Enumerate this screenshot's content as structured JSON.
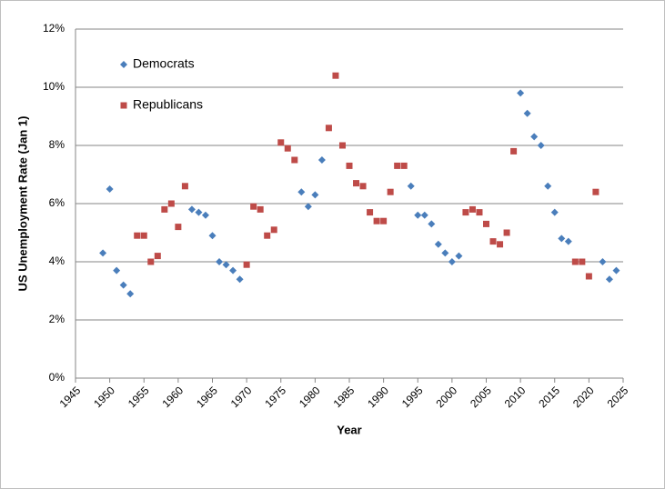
{
  "chart_data": {
    "type": "scatter",
    "x_label": "Year",
    "y_label": "US Unemployment Rate (Jan 1)",
    "xlim": [
      1945,
      2025
    ],
    "xticks": [
      1945,
      1950,
      1955,
      1960,
      1965,
      1970,
      1975,
      1980,
      1985,
      1990,
      1995,
      2000,
      2005,
      2010,
      2015,
      2020,
      2025
    ],
    "ylim": [
      0,
      12
    ],
    "yticks": [
      {
        "value": 0,
        "label": "0%"
      },
      {
        "value": 2,
        "label": "2%"
      },
      {
        "value": 4,
        "label": "4%"
      },
      {
        "value": 6,
        "label": "6%"
      },
      {
        "value": 8,
        "label": "8%"
      },
      {
        "value": 10,
        "label": "10%"
      },
      {
        "value": 12,
        "label": "12%"
      }
    ],
    "grid": true,
    "legend": "upper left",
    "series": [
      {
        "name": "Democrats",
        "color": "#4a7ebb",
        "marker": "diamond",
        "x": [
          1949,
          1950,
          1951,
          1952,
          1953,
          1962,
          1963,
          1964,
          1965,
          1966,
          1967,
          1968,
          1969,
          1978,
          1979,
          1980,
          1981,
          1994,
          1995,
          1996,
          1997,
          1998,
          1999,
          2000,
          2001,
          2010,
          2011,
          2012,
          2013,
          2014,
          2015,
          2016,
          2017,
          2022,
          2023,
          2024
        ],
        "values": [
          4.3,
          6.5,
          3.7,
          3.2,
          2.9,
          5.8,
          5.7,
          5.6,
          4.9,
          4.0,
          3.9,
          3.7,
          3.4,
          6.4,
          5.9,
          6.3,
          7.5,
          6.6,
          5.6,
          5.6,
          5.3,
          4.6,
          4.3,
          4.0,
          4.2,
          9.8,
          9.1,
          8.3,
          8.0,
          6.6,
          5.7,
          4.8,
          4.7,
          4.0,
          3.4,
          3.7
        ]
      },
      {
        "name": "Republicans",
        "color": "#be4b48",
        "marker": "square",
        "x": [
          1954,
          1955,
          1956,
          1957,
          1958,
          1959,
          1960,
          1961,
          1970,
          1971,
          1972,
          1973,
          1974,
          1975,
          1976,
          1977,
          1982,
          1983,
          1984,
          1985,
          1986,
          1987,
          1988,
          1989,
          1990,
          1991,
          1992,
          1993,
          2002,
          2003,
          2004,
          2005,
          2006,
          2007,
          2008,
          2009,
          2018,
          2019,
          2020,
          2021
        ],
        "values": [
          4.9,
          4.9,
          4.0,
          4.2,
          5.8,
          6.0,
          5.2,
          6.6,
          3.9,
          5.9,
          5.8,
          4.9,
          5.1,
          8.1,
          7.9,
          7.5,
          8.6,
          10.4,
          8.0,
          7.3,
          6.7,
          6.6,
          5.7,
          5.4,
          5.4,
          6.4,
          7.3,
          7.3,
          5.7,
          5.8,
          5.7,
          5.3,
          4.7,
          4.6,
          5.0,
          7.8,
          4.0,
          4.0,
          3.5,
          6.4
        ]
      }
    ]
  }
}
